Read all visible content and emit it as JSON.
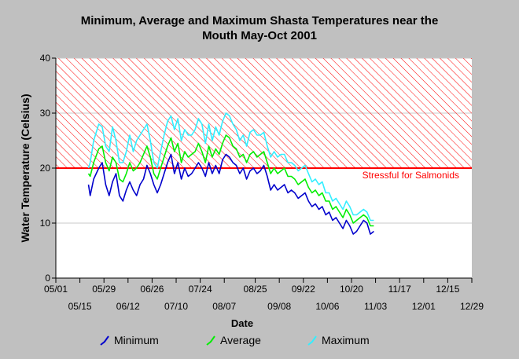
{
  "chart_data": {
    "type": "line",
    "title_lines": [
      "Minimum, Average and Maximum Shasta Temperatures near the",
      "Mouth May-Oct 2001"
    ],
    "xlabel": "Date",
    "ylabel": "Water Temperature (Celsius)",
    "ylim": [
      0,
      40
    ],
    "yticks": [
      0,
      10,
      20,
      30,
      40
    ],
    "xlim": [
      "2001-05-01",
      "2001-12-29"
    ],
    "xticks_top": [
      "05/01",
      "05/29",
      "06/26",
      "07/24",
      "08/25",
      "09/22",
      "10/20",
      "11/17",
      "12/15"
    ],
    "xticks_bottom": [
      "05/15",
      "06/12",
      "07/10",
      "08/07",
      "09/08",
      "10/06",
      "11/03",
      "12/01",
      "12/29"
    ],
    "threshold": {
      "value": 20,
      "label": "Stressful for Salmonids",
      "color": "#ff0000"
    },
    "grid": true,
    "legend_position": "bottom",
    "series": [
      {
        "name": "Minimum",
        "color": "#0000cc",
        "points": [
          [
            "2001-05-20",
            17
          ],
          [
            "2001-05-21",
            15
          ],
          [
            "2001-05-23",
            18
          ],
          [
            "2001-05-26",
            20
          ],
          [
            "2001-05-28",
            21
          ],
          [
            "2001-05-30",
            17
          ],
          [
            "2001-06-01",
            15
          ],
          [
            "2001-06-03",
            17.5
          ],
          [
            "2001-06-05",
            19
          ],
          [
            "2001-06-07",
            15
          ],
          [
            "2001-06-09",
            14
          ],
          [
            "2001-06-11",
            16
          ],
          [
            "2001-06-13",
            17.5
          ],
          [
            "2001-06-15",
            16
          ],
          [
            "2001-06-17",
            15
          ],
          [
            "2001-06-19",
            17
          ],
          [
            "2001-06-21",
            18
          ],
          [
            "2001-06-23",
            20.5
          ],
          [
            "2001-06-25",
            19
          ],
          [
            "2001-06-27",
            17
          ],
          [
            "2001-06-29",
            15.5
          ],
          [
            "2001-07-01",
            17
          ],
          [
            "2001-07-03",
            19
          ],
          [
            "2001-07-05",
            21
          ],
          [
            "2001-07-07",
            22.5
          ],
          [
            "2001-07-09",
            19
          ],
          [
            "2001-07-11",
            21
          ],
          [
            "2001-07-13",
            18
          ],
          [
            "2001-07-15",
            20
          ],
          [
            "2001-07-17",
            18.5
          ],
          [
            "2001-07-19",
            19
          ],
          [
            "2001-07-21",
            20
          ],
          [
            "2001-07-23",
            21
          ],
          [
            "2001-07-25",
            20
          ],
          [
            "2001-07-27",
            18.5
          ],
          [
            "2001-07-29",
            21
          ],
          [
            "2001-07-31",
            19
          ],
          [
            "2001-08-02",
            20.5
          ],
          [
            "2001-08-04",
            19
          ],
          [
            "2001-08-06",
            21.5
          ],
          [
            "2001-08-08",
            22.5
          ],
          [
            "2001-08-10",
            22
          ],
          [
            "2001-08-12",
            21
          ],
          [
            "2001-08-14",
            20.5
          ],
          [
            "2001-08-16",
            19
          ],
          [
            "2001-08-18",
            20
          ],
          [
            "2001-08-20",
            18
          ],
          [
            "2001-08-22",
            19.5
          ],
          [
            "2001-08-24",
            20
          ],
          [
            "2001-08-26",
            19
          ],
          [
            "2001-08-28",
            19.5
          ],
          [
            "2001-08-30",
            20.5
          ],
          [
            "2001-09-01",
            18.5
          ],
          [
            "2001-09-03",
            16
          ],
          [
            "2001-09-05",
            17
          ],
          [
            "2001-09-07",
            16
          ],
          [
            "2001-09-09",
            16.5
          ],
          [
            "2001-09-11",
            17
          ],
          [
            "2001-09-13",
            15.5
          ],
          [
            "2001-09-15",
            16
          ],
          [
            "2001-09-17",
            15.5
          ],
          [
            "2001-09-19",
            14.5
          ],
          [
            "2001-09-21",
            15
          ],
          [
            "2001-09-23",
            15.5
          ],
          [
            "2001-09-25",
            14
          ],
          [
            "2001-09-27",
            13
          ],
          [
            "2001-09-29",
            13.5
          ],
          [
            "2001-10-01",
            12.5
          ],
          [
            "2001-10-03",
            13
          ],
          [
            "2001-10-05",
            11.5
          ],
          [
            "2001-10-07",
            12
          ],
          [
            "2001-10-09",
            10.5
          ],
          [
            "2001-10-11",
            11
          ],
          [
            "2001-10-13",
            10
          ],
          [
            "2001-10-15",
            9
          ],
          [
            "2001-10-17",
            10.5
          ],
          [
            "2001-10-19",
            9.5
          ],
          [
            "2001-10-21",
            8
          ],
          [
            "2001-10-23",
            8.5
          ],
          [
            "2001-10-25",
            9.5
          ],
          [
            "2001-10-27",
            10.5
          ],
          [
            "2001-10-29",
            10
          ],
          [
            "2001-10-31",
            8
          ],
          [
            "2001-11-02",
            8.5
          ]
        ]
      },
      {
        "name": "Average",
        "color": "#00ee00",
        "points": [
          [
            "2001-05-20",
            19
          ],
          [
            "2001-05-21",
            18.5
          ],
          [
            "2001-05-23",
            21
          ],
          [
            "2001-05-26",
            23.5
          ],
          [
            "2001-05-28",
            24
          ],
          [
            "2001-05-30",
            21
          ],
          [
            "2001-06-01",
            19.5
          ],
          [
            "2001-06-03",
            22
          ],
          [
            "2001-06-05",
            21
          ],
          [
            "2001-06-07",
            18
          ],
          [
            "2001-06-09",
            17.5
          ],
          [
            "2001-06-11",
            19
          ],
          [
            "2001-06-13",
            21
          ],
          [
            "2001-06-15",
            19.5
          ],
          [
            "2001-06-17",
            20
          ],
          [
            "2001-06-19",
            21
          ],
          [
            "2001-06-21",
            22.5
          ],
          [
            "2001-06-23",
            24
          ],
          [
            "2001-06-25",
            22
          ],
          [
            "2001-06-27",
            19
          ],
          [
            "2001-06-29",
            18
          ],
          [
            "2001-07-01",
            20
          ],
          [
            "2001-07-03",
            22
          ],
          [
            "2001-07-05",
            24
          ],
          [
            "2001-07-07",
            25.5
          ],
          [
            "2001-07-09",
            23
          ],
          [
            "2001-07-11",
            24.5
          ],
          [
            "2001-07-13",
            21
          ],
          [
            "2001-07-15",
            23
          ],
          [
            "2001-07-17",
            22
          ],
          [
            "2001-07-19",
            22.5
          ],
          [
            "2001-07-21",
            23
          ],
          [
            "2001-07-23",
            24.5
          ],
          [
            "2001-07-25",
            23
          ],
          [
            "2001-07-27",
            21
          ],
          [
            "2001-07-29",
            24
          ],
          [
            "2001-07-31",
            22
          ],
          [
            "2001-08-02",
            23.5
          ],
          [
            "2001-08-04",
            22.5
          ],
          [
            "2001-08-06",
            24.5
          ],
          [
            "2001-08-08",
            26
          ],
          [
            "2001-08-10",
            25.5
          ],
          [
            "2001-08-12",
            24
          ],
          [
            "2001-08-14",
            23.5
          ],
          [
            "2001-08-16",
            22
          ],
          [
            "2001-08-18",
            22.5
          ],
          [
            "2001-08-20",
            21
          ],
          [
            "2001-08-22",
            22.5
          ],
          [
            "2001-08-24",
            23
          ],
          [
            "2001-08-26",
            22
          ],
          [
            "2001-08-28",
            22.5
          ],
          [
            "2001-08-30",
            23
          ],
          [
            "2001-09-01",
            21
          ],
          [
            "2001-09-03",
            19
          ],
          [
            "2001-09-05",
            20
          ],
          [
            "2001-09-07",
            19
          ],
          [
            "2001-09-09",
            19.5
          ],
          [
            "2001-09-11",
            20
          ],
          [
            "2001-09-13",
            18.5
          ],
          [
            "2001-09-15",
            18.5
          ],
          [
            "2001-09-17",
            18
          ],
          [
            "2001-09-19",
            17
          ],
          [
            "2001-09-21",
            17.5
          ],
          [
            "2001-09-23",
            18
          ],
          [
            "2001-09-25",
            16.5
          ],
          [
            "2001-09-27",
            15.5
          ],
          [
            "2001-09-29",
            16
          ],
          [
            "2001-10-01",
            15
          ],
          [
            "2001-10-03",
            15.5
          ],
          [
            "2001-10-05",
            14
          ],
          [
            "2001-10-07",
            14
          ],
          [
            "2001-10-09",
            12.5
          ],
          [
            "2001-10-11",
            13
          ],
          [
            "2001-10-13",
            12
          ],
          [
            "2001-10-15",
            11
          ],
          [
            "2001-10-17",
            12.5
          ],
          [
            "2001-10-19",
            11.5
          ],
          [
            "2001-10-21",
            10
          ],
          [
            "2001-10-23",
            10.5
          ],
          [
            "2001-10-25",
            11
          ],
          [
            "2001-10-27",
            11.5
          ],
          [
            "2001-10-29",
            11
          ],
          [
            "2001-10-31",
            9.5
          ],
          [
            "2001-11-02",
            9.5
          ]
        ]
      },
      {
        "name": "Maximum",
        "color": "#33eeff",
        "points": [
          [
            "2001-05-20",
            20
          ],
          [
            "2001-05-21",
            21
          ],
          [
            "2001-05-23",
            25
          ],
          [
            "2001-05-26",
            28
          ],
          [
            "2001-05-28",
            27.5
          ],
          [
            "2001-05-30",
            24
          ],
          [
            "2001-06-01",
            23
          ],
          [
            "2001-06-03",
            27.5
          ],
          [
            "2001-06-05",
            25
          ],
          [
            "2001-06-07",
            21
          ],
          [
            "2001-06-09",
            21
          ],
          [
            "2001-06-11",
            23
          ],
          [
            "2001-06-13",
            26
          ],
          [
            "2001-06-15",
            23
          ],
          [
            "2001-06-17",
            25
          ],
          [
            "2001-06-19",
            26
          ],
          [
            "2001-06-21",
            27
          ],
          [
            "2001-06-23",
            28
          ],
          [
            "2001-06-25",
            25
          ],
          [
            "2001-06-27",
            21
          ],
          [
            "2001-06-29",
            20
          ],
          [
            "2001-07-01",
            23
          ],
          [
            "2001-07-03",
            26
          ],
          [
            "2001-07-05",
            28.5
          ],
          [
            "2001-07-07",
            29.5
          ],
          [
            "2001-07-09",
            27
          ],
          [
            "2001-07-11",
            29
          ],
          [
            "2001-07-13",
            25
          ],
          [
            "2001-07-15",
            27
          ],
          [
            "2001-07-17",
            26
          ],
          [
            "2001-07-19",
            26
          ],
          [
            "2001-07-21",
            27
          ],
          [
            "2001-07-23",
            29
          ],
          [
            "2001-07-25",
            28
          ],
          [
            "2001-07-27",
            24.5
          ],
          [
            "2001-07-29",
            28
          ],
          [
            "2001-07-31",
            25
          ],
          [
            "2001-08-02",
            27.5
          ],
          [
            "2001-08-04",
            26
          ],
          [
            "2001-08-06",
            28.5
          ],
          [
            "2001-08-08",
            30
          ],
          [
            "2001-08-10",
            29.5
          ],
          [
            "2001-08-12",
            28
          ],
          [
            "2001-08-14",
            27
          ],
          [
            "2001-08-16",
            25
          ],
          [
            "2001-08-18",
            26
          ],
          [
            "2001-08-20",
            24
          ],
          [
            "2001-08-22",
            26.5
          ],
          [
            "2001-08-24",
            27
          ],
          [
            "2001-08-26",
            26
          ],
          [
            "2001-08-28",
            26
          ],
          [
            "2001-08-30",
            26.5
          ],
          [
            "2001-09-01",
            24
          ],
          [
            "2001-09-03",
            22
          ],
          [
            "2001-09-05",
            23
          ],
          [
            "2001-09-07",
            22
          ],
          [
            "2001-09-09",
            22.5
          ],
          [
            "2001-09-11",
            22.5
          ],
          [
            "2001-09-13",
            21
          ],
          [
            "2001-09-15",
            21
          ],
          [
            "2001-09-17",
            20.5
          ],
          [
            "2001-09-19",
            19.5
          ],
          [
            "2001-09-21",
            20
          ],
          [
            "2001-09-23",
            20.5
          ],
          [
            "2001-09-25",
            19
          ],
          [
            "2001-09-27",
            17.5
          ],
          [
            "2001-09-29",
            18
          ],
          [
            "2001-10-01",
            17
          ],
          [
            "2001-10-03",
            17.5
          ],
          [
            "2001-10-05",
            15.5
          ],
          [
            "2001-10-07",
            15.5
          ],
          [
            "2001-10-09",
            14
          ],
          [
            "2001-10-11",
            14.5
          ],
          [
            "2001-10-13",
            13.5
          ],
          [
            "2001-10-15",
            12.5
          ],
          [
            "2001-10-17",
            14
          ],
          [
            "2001-10-19",
            13
          ],
          [
            "2001-10-21",
            11.5
          ],
          [
            "2001-10-23",
            11.5
          ],
          [
            "2001-10-25",
            12
          ],
          [
            "2001-10-27",
            12.5
          ],
          [
            "2001-10-29",
            12
          ],
          [
            "2001-10-31",
            10.5
          ],
          [
            "2001-11-02",
            10.5
          ]
        ]
      }
    ]
  }
}
